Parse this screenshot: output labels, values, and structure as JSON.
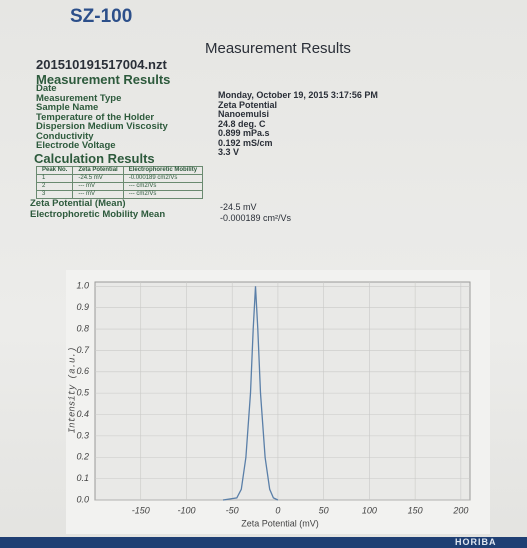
{
  "header": {
    "model": "SZ-100",
    "title": "Measurement Results",
    "file": "201510191517004.nzt",
    "section": "Measurement Results",
    "footer": "HORIBA"
  },
  "fields": [
    {
      "label": "Date",
      "value": "Monday, October 19, 2015 3:17:56 PM"
    },
    {
      "label": "Measurement Type",
      "value": "Zeta Potential"
    },
    {
      "label": "Sample Name",
      "value": "Nanoemulsi"
    },
    {
      "label": "Temperature of the Holder",
      "value": "24.8 deg. C"
    },
    {
      "label": "Dispersion Medium Viscosity",
      "value": "0.899 mPa.s"
    },
    {
      "label": "Conductivity",
      "value": "0.192 mS/cm"
    },
    {
      "label": "Electrode Voltage",
      "value": "3.3 V"
    }
  ],
  "calculation": {
    "title": "Calculation Results",
    "table": {
      "header": [
        "Peak No.",
        "Zeta Potential",
        "Electrophoretic Mobility"
      ],
      "rows": [
        [
          "1",
          "-24.5 mV",
          "-0.000189 cm2/Vs"
        ],
        [
          "2",
          "--- mV",
          "--- cm2/Vs"
        ],
        [
          "3",
          "--- mV",
          "--- cm2/Vs"
        ]
      ]
    },
    "summary": [
      {
        "label": "Zeta Potential (Mean)",
        "value": "-24.5 mV"
      },
      {
        "label": "Electrophoretic Mobility Mean",
        "value": "-0.000189 cm²/Vs"
      }
    ]
  },
  "chart_data": {
    "type": "line",
    "x_label": "Zeta Potential (mV)",
    "y_label": "Intensity (a.u.)",
    "x": [
      -60,
      -45,
      -40,
      -35,
      -30,
      -27,
      -24.5,
      -22,
      -19,
      -14,
      -9,
      -5,
      0
    ],
    "values": [
      0,
      0.01,
      0.05,
      0.2,
      0.5,
      0.8,
      1.0,
      0.8,
      0.5,
      0.2,
      0.05,
      0.01,
      0
    ],
    "color": "#5a7fa8",
    "xlim": [
      -200,
      210
    ],
    "xticks": [
      -150,
      -100,
      -50,
      0,
      50,
      100,
      150,
      200
    ],
    "ylim": [
      0,
      1.02
    ],
    "yticks": [
      {
        "value": 0,
        "label": "0.0"
      },
      0.1,
      0.2,
      0.3,
      0.4,
      0.5,
      0.6,
      0.7,
      0.8,
      0.9,
      {
        "value": 1,
        "label": "1.0"
      }
    ],
    "grid": true
  }
}
